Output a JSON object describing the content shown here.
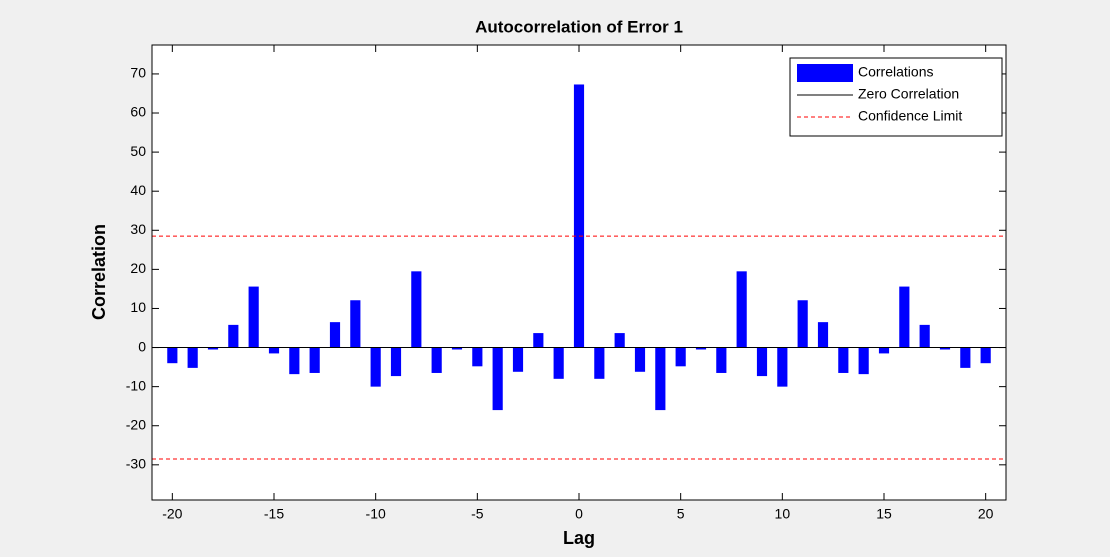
{
  "chart_data": {
    "type": "bar",
    "title": "Autocorrelation of Error 1",
    "x_label": "Lag",
    "y_label": "Correlation",
    "x": [
      -20,
      -19,
      -18,
      -17,
      -16,
      -15,
      -14,
      -13,
      -12,
      -11,
      -10,
      -9,
      -8,
      -7,
      -6,
      -5,
      -4,
      -3,
      -2,
      -1,
      0,
      1,
      2,
      3,
      4,
      5,
      6,
      7,
      8,
      9,
      10,
      11,
      12,
      13,
      14,
      15,
      16,
      17,
      18,
      19,
      20
    ],
    "series": [
      {
        "name": "Correlations",
        "color": "#0000ff",
        "values": [
          -4,
          -5.2,
          -0.5,
          5.8,
          15.6,
          -1.5,
          -6.8,
          -6.5,
          6.5,
          12.1,
          -10,
          -7.3,
          19.5,
          -6.5,
          -0.5,
          -4.8,
          -16,
          -6.2,
          3.7,
          -8,
          67.3,
          -8,
          3.7,
          -6.2,
          -16,
          -4.8,
          -0.5,
          -6.5,
          19.5,
          -7.3,
          -10,
          12.1,
          6.5,
          -6.5,
          -6.8,
          -1.5,
          15.6,
          5.8,
          -0.5,
          -5.2,
          -4
        ]
      }
    ],
    "lines": [
      {
        "name": "Zero Correlation",
        "value": 0,
        "color": "#000000",
        "dashed": false
      },
      {
        "name": "Confidence Limit",
        "values": [
          28.5,
          -28.5
        ],
        "color": "#ff0000",
        "dashed": true
      }
    ],
    "xlim": [
      -21,
      21
    ],
    "ylim": [
      -39,
      77.4
    ],
    "xticks": [
      -20,
      -15,
      -10,
      -5,
      0,
      5,
      10,
      15,
      20
    ],
    "yticks": [
      -30,
      -20,
      -10,
      0,
      10,
      20,
      30,
      40,
      50,
      60,
      70
    ],
    "legend": "upper right"
  }
}
